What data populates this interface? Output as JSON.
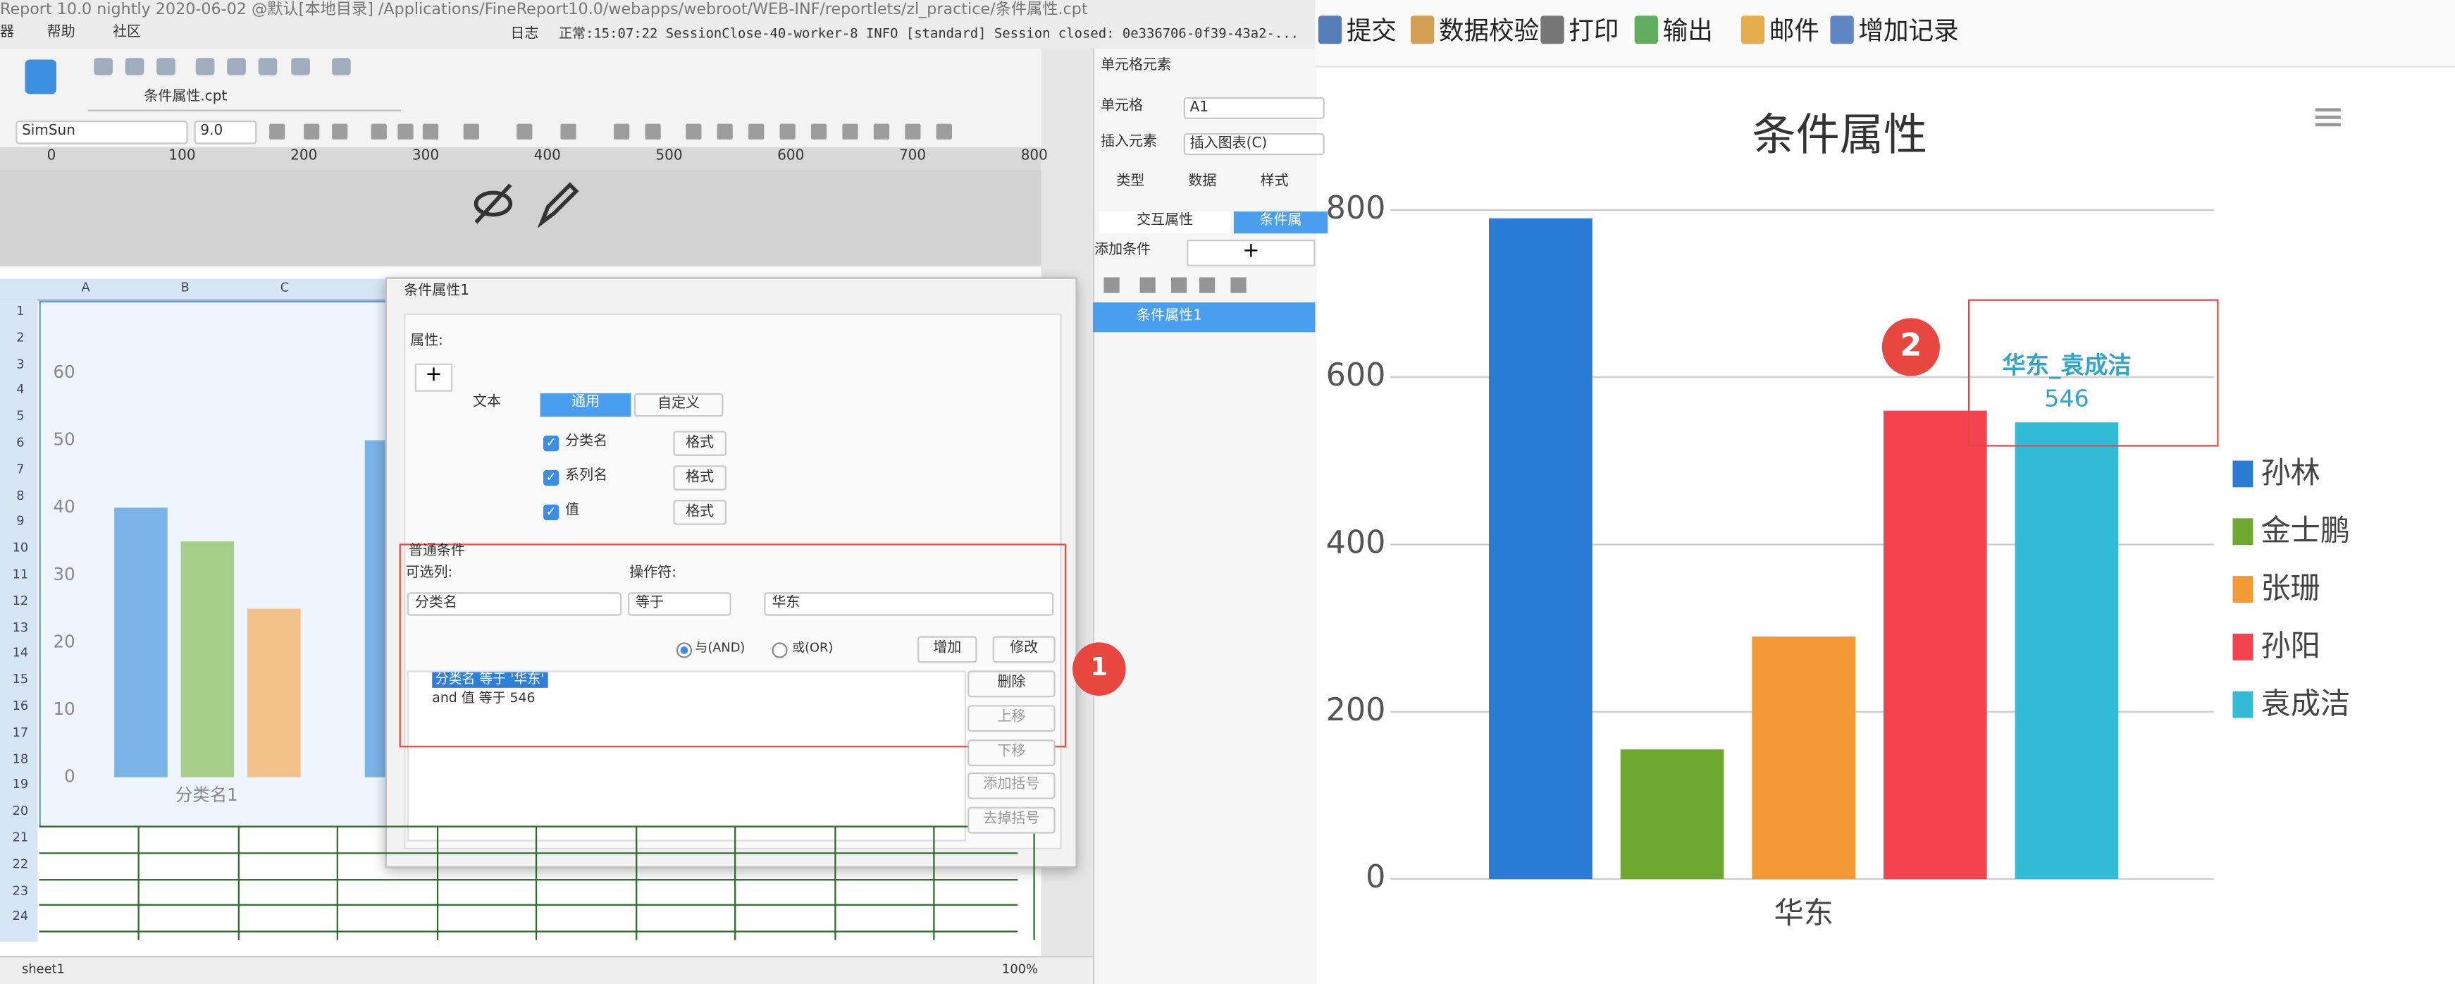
{
  "window": {
    "title": "Report 10.0 nightly 2020-06-02 @默认[本地目录]   /Applications/FineReport10.0/webapps/webroot/WEB-INF/reportlets/zl_practice/条件属性.cpt",
    "log": "日志",
    "status": "正常:15:07:22 SessionClose-40-worker-8 INFO [standard] Session closed: 0e336706-0f39-43a2-..."
  },
  "menu": [
    "器",
    "帮助",
    "社区"
  ],
  "designer": {
    "tab": "条件属性.cpt",
    "font": "SimSun",
    "font_size": "9.0",
    "ruler": [
      0,
      100,
      200,
      300,
      400,
      500,
      600,
      700,
      800
    ],
    "columns": [
      "A",
      "B",
      "C"
    ],
    "rows": [
      1,
      2,
      3,
      4,
      5,
      6,
      7,
      8,
      9,
      10,
      11,
      12,
      13,
      14,
      15,
      16,
      17,
      18,
      19,
      20,
      21,
      22,
      23,
      24
    ],
    "sheet": "sheet1",
    "zoom": "100%",
    "chart": {
      "type": "bar",
      "categories": [
        "分类名1",
        null
      ],
      "series": [
        {
          "color": "#7ab3e8",
          "values": [
            40,
            50
          ]
        },
        {
          "color": "#a8cf8a",
          "values": [
            35,
            null
          ]
        },
        {
          "color": "#f3c088",
          "values": [
            25,
            null
          ]
        }
      ],
      "ylim": [
        0,
        60
      ],
      "yticks": [
        0,
        10,
        20,
        30,
        40,
        50,
        60
      ]
    }
  },
  "dialog": {
    "title": "条件属性1",
    "properties": "属性:",
    "tabs": [
      "文本",
      "通用",
      "自定义"
    ],
    "checks": [
      "分类名",
      "系列名",
      "值"
    ],
    "format": "格式",
    "section": "普通条件",
    "column_label": "可选列:",
    "operator_label": "操作符:",
    "column": "分类名",
    "operator": "等于",
    "value": "华东",
    "and": "与(AND)",
    "or": "或(OR)",
    "buttons": [
      "增加",
      "修改",
      "删除",
      "上移",
      "下移",
      "添加括号",
      "去掉括号"
    ],
    "conditions": [
      "分类名 等于 '华东'",
      "and 值 等于 546"
    ],
    "callout": "1"
  },
  "panel": {
    "title": "单元格元素",
    "cell_label": "单元格",
    "cell": "A1",
    "insert_label": "插入元素",
    "insert": "插入图表(C)",
    "tabs": [
      "类型",
      "数据",
      "样式"
    ],
    "subtabs": [
      "交互属性",
      "条件属"
    ],
    "add_condition": "添加条件",
    "item": "条件属性1"
  },
  "preview": {
    "toolbar": [
      "提交",
      "数据校验",
      "打印",
      "输出",
      "邮件",
      "增加记录"
    ],
    "callout": "2",
    "chart": {
      "type": "bar",
      "title": "条件属性",
      "categories": [
        "华东"
      ],
      "series": [
        {
          "name": "孙林",
          "color": "#2a7bd4",
          "values": [
            790
          ]
        },
        {
          "name": "金士鹏",
          "color": "#6fa82f",
          "values": [
            155
          ]
        },
        {
          "name": "张珊",
          "color": "#f39a36",
          "values": [
            290
          ]
        },
        {
          "name": "孙阳",
          "color": "#f2434f",
          "values": [
            560
          ]
        },
        {
          "name": "袁成洁",
          "color": "#31bbd6",
          "values": [
            546
          ]
        }
      ],
      "ylim": [
        0,
        800
      ],
      "yticks": [
        0,
        200,
        400,
        600,
        800
      ],
      "grid": true,
      "legend": "right",
      "data_label": "华东_袁成洁"
    }
  }
}
